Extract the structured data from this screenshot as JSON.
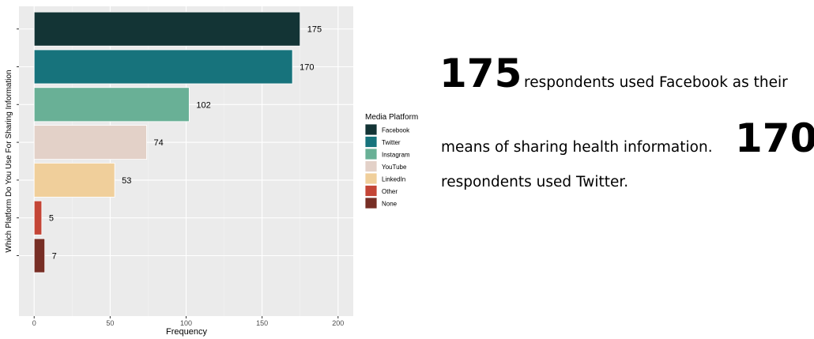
{
  "chart_data": {
    "type": "bar",
    "orientation": "horizontal",
    "categories": [
      null,
      null,
      null,
      null,
      null,
      null,
      null
    ],
    "values": [
      175,
      170,
      102,
      74,
      53,
      5,
      7
    ],
    "colors": [
      "#133435",
      "#17737c",
      "#69b096",
      "#e3d1c8",
      "#f0cf9b",
      "#c44536",
      "#772e25"
    ],
    "xlim": [
      -10,
      210
    ],
    "xticks": [
      0,
      50,
      100,
      150,
      200
    ],
    "xlabel": "Frequency",
    "ylabel": "Which Platform Do You Use For Sharing Information",
    "grid": true,
    "legend": {
      "title": "Media Platform",
      "labels": [
        "Facebook",
        "Twitter",
        "Instagram",
        "YouTube",
        "LinkedIn",
        "Other",
        "None"
      ],
      "position": "right"
    }
  },
  "annotation": {
    "line1": {
      "number": "175",
      "text": "respondents used Facebook as their"
    },
    "line2": {
      "text": "means of sharing health information.",
      "number": "170"
    },
    "line3": {
      "text": "respondents used Twitter."
    }
  }
}
